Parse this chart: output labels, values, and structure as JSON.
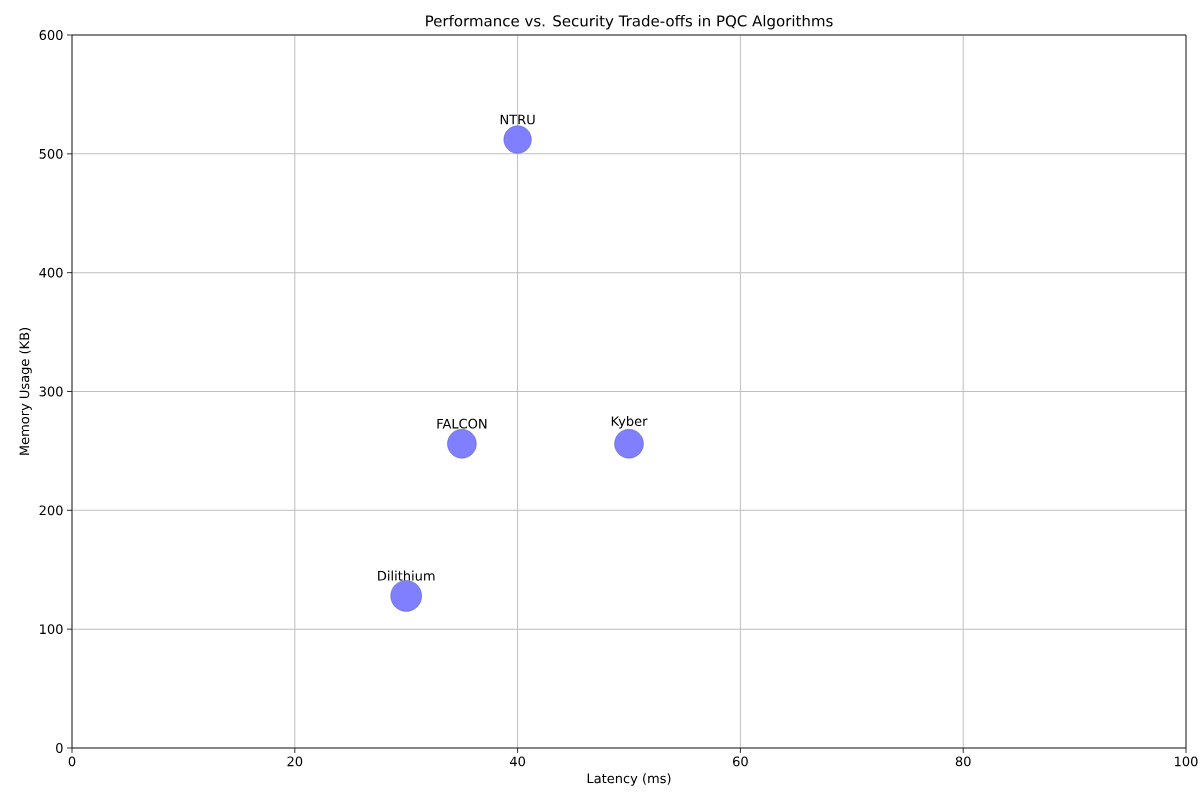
{
  "chart_data": {
    "type": "bubble",
    "title": "Performance vs. Security Trade-offs in PQC Algorithms",
    "xlabel": "Latency (ms)",
    "ylabel": "Memory Usage (KB)",
    "x": [
      50,
      30,
      35,
      40
    ],
    "values": [
      256,
      128,
      256,
      512
    ],
    "sizes": [
      0.87,
      1,
      0.87,
      0.79
    ],
    "color": "#7f7fff",
    "annotations": [
      {
        "text": "Kyber",
        "x": 50,
        "y": 256
      },
      {
        "text": "Dilithium",
        "x": 30,
        "y": 128
      },
      {
        "text": "FALCON",
        "x": 35,
        "y": 256
      },
      {
        "text": "NTRU",
        "x": 40,
        "y": 512
      }
    ],
    "xlim": [
      0,
      100
    ],
    "ylim": [
      0,
      600
    ],
    "xticks": [
      0,
      20,
      40,
      60,
      80,
      100
    ],
    "yticks": [
      0,
      100,
      200,
      300,
      400,
      500,
      600
    ],
    "grid": true,
    "marker": "circle"
  }
}
